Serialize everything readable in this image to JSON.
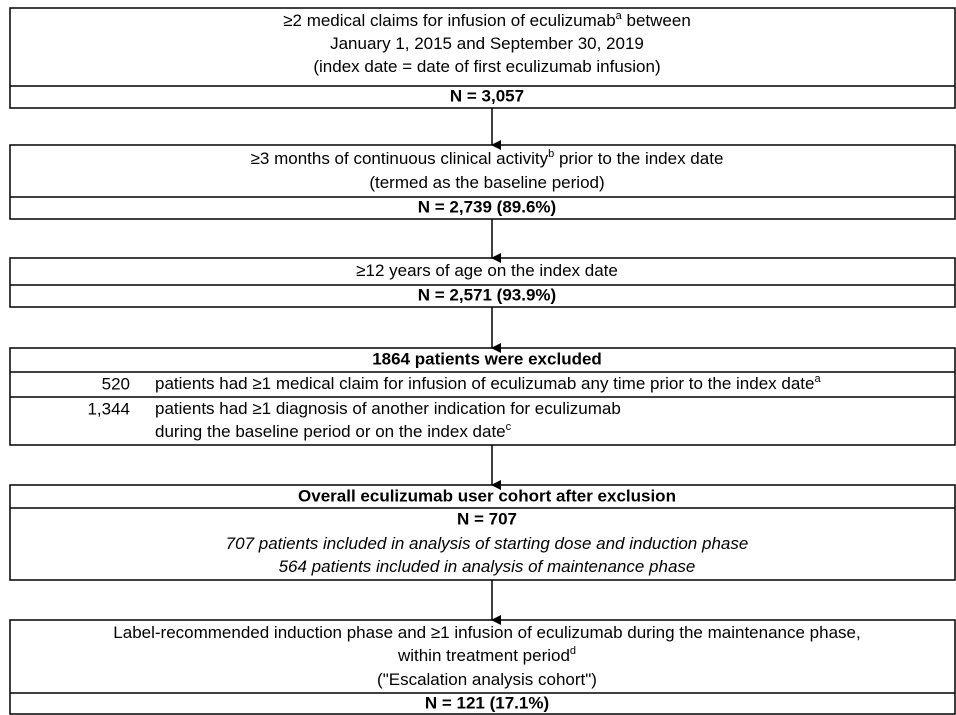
{
  "boxes": [
    {
      "lines": [
        [
          {
            "text": "≥2 medical claims for infusion of eculizumab"
          },
          {
            "sup": "a"
          },
          {
            "text": " between"
          }
        ],
        [
          {
            "text": "January 1, 2015 and September 30, 2019"
          }
        ],
        [
          {
            "text": "(index date = date of first eculizumab infusion)"
          }
        ]
      ],
      "n": "N = 3,057"
    },
    {
      "lines": [
        [
          {
            "text": "≥3 months of continuous clinical activity"
          },
          {
            "sup": "b"
          },
          {
            "text": " prior to the index date"
          }
        ],
        [
          {
            "text": "(termed as the baseline period)"
          }
        ]
      ],
      "n": "N = 2,739 (89.6%)"
    },
    {
      "lines": [
        [
          {
            "text": "≥12 years of age on the index date"
          }
        ]
      ],
      "n": "N = 2,571 (93.9%)"
    },
    {
      "header": "1864 patients were excluded",
      "rows": [
        {
          "count": "520",
          "lines": [
            [
              {
                "text": "patients had ≥1 medical claim for infusion of eculizumab any time prior to the index date"
              },
              {
                "sup": "a"
              }
            ]
          ]
        },
        {
          "count": "1,344",
          "lines": [
            [
              {
                "text": "patients had ≥1 diagnosis of another indication for eculizumab"
              }
            ],
            [
              {
                "text": "during the baseline period or on the index date"
              },
              {
                "sup": "c"
              }
            ]
          ]
        }
      ]
    },
    {
      "header": "Overall eculizumab user cohort after exclusion",
      "n": "N = 707",
      "notes": [
        [
          {
            "text": "707 patients included in analysis of starting dose and induction phase"
          }
        ],
        [
          {
            "text": "564 patients included in analysis of maintenance phase"
          }
        ]
      ]
    },
    {
      "lines": [
        [
          {
            "text": "Label-recommended induction phase and ≥1 infusion of eculizumab during the maintenance phase,"
          }
        ],
        [
          {
            "text": "within treatment period"
          },
          {
            "sup": "d"
          }
        ],
        [
          {
            "text": "(\"Escalation analysis cohort\")"
          }
        ]
      ],
      "n": "N = 121 (17.1%)"
    }
  ]
}
